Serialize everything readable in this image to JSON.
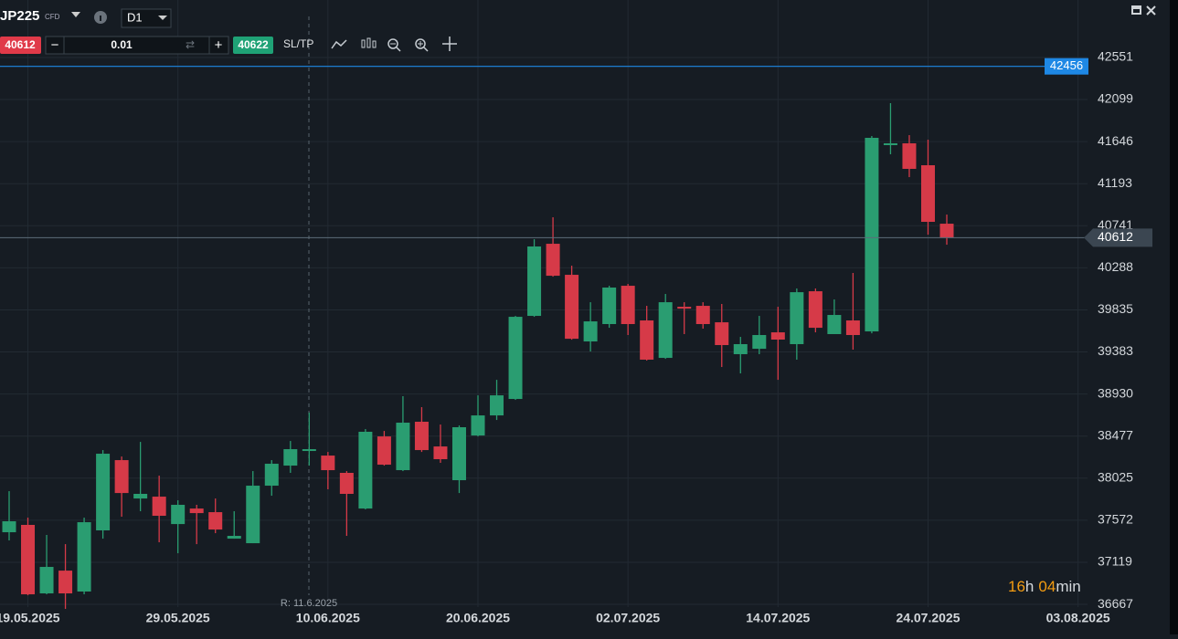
{
  "toolbar": {
    "symbol": "JP225",
    "symbol_type": "CFD",
    "timeframe": "D1",
    "sell_price": 40612,
    "volume": 0.01,
    "buy_price": 40622,
    "sltp": "SL/TP"
  },
  "chart_data": {
    "type": "candlestick",
    "categories": [
      null,
      "19.05.2025",
      null,
      null,
      null,
      null,
      null,
      null,
      null,
      "29.05.2025",
      null,
      null,
      null,
      null,
      null,
      null,
      null,
      "10.06.2025",
      null,
      null,
      null,
      null,
      null,
      null,
      null,
      "20.06.2025",
      null,
      null,
      null,
      null,
      null,
      null,
      null,
      "02.07.2025",
      null,
      null,
      null,
      null,
      null,
      null,
      null,
      "14.07.2025",
      null,
      null,
      null,
      null,
      null,
      null,
      null,
      "24.07.2025",
      null,
      null,
      null,
      null,
      null,
      null,
      null,
      "03.08.2025"
    ],
    "open": [
      37443,
      37522,
      36785,
      37030,
      36805,
      37463,
      38219,
      37806,
      37826,
      37531,
      37698,
      37659,
      37374,
      37325,
      37944,
      38160,
      38327,
      38268,
      38082,
      37698,
      38474,
      38111,
      38632,
      38366,
      38003,
      38484,
      38700,
      38877,
      39771,
      40547,
      40213,
      39496,
      39683,
      40095,
      39722,
      39319,
      39869,
      39879,
      39702,
      39359,
      39417,
      39594,
      39467,
      40036,
      39575,
      39722,
      39604,
      41618,
      41628,
      41392,
      40763,
      null,
      null,
      null,
      null,
      null,
      null,
      null
    ],
    "high": [
      37885,
      37600,
      37414,
      37315,
      37600,
      38327,
      38258,
      38415,
      38052,
      37787,
      37738,
      37806,
      37669,
      38101,
      38219,
      38425,
      38730,
      38307,
      38101,
      38553,
      38533,
      38907,
      38789,
      38602,
      38592,
      38916,
      39083,
      39771,
      40596,
      40832,
      40311,
      39918,
      40095,
      40115,
      39879,
      40007,
      39918,
      39918,
      39899,
      39545,
      39771,
      39869,
      40066,
      40066,
      39948,
      40233,
      41706,
      42060,
      41716,
      41667,
      40861,
      null,
      null,
      null,
      null,
      null,
      null,
      null
    ],
    "low": [
      37355,
      36765,
      36775,
      36618,
      36775,
      37374,
      37610,
      37669,
      37335,
      37217,
      37315,
      37433,
      37374,
      37325,
      37836,
      38082,
      38160,
      37905,
      37404,
      37689,
      38160,
      38101,
      38307,
      38190,
      37865,
      38474,
      38651,
      38867,
      39761,
      40193,
      39515,
      39388,
      39643,
      39565,
      39290,
      39309,
      39575,
      39634,
      39221,
      39152,
      39359,
      39083,
      39300,
      39594,
      39575,
      39408,
      39584,
      41510,
      41264,
      40645,
      40537,
      null,
      null,
      null,
      null,
      null,
      null,
      null
    ],
    "close": [
      37561,
      36775,
      37070,
      36785,
      37551,
      38288,
      37865,
      37856,
      37620,
      37738,
      37649,
      37472,
      37404,
      37944,
      38180,
      38337,
      38337,
      38111,
      37856,
      38524,
      38170,
      38622,
      38327,
      38229,
      38573,
      38700,
      38916,
      39761,
      40518,
      40203,
      39525,
      39712,
      40076,
      39683,
      39300,
      39918,
      39859,
      39683,
      39457,
      39467,
      39565,
      39516,
      40026,
      39643,
      39781,
      39565,
      41687,
      41628,
      41353,
      40783,
      40612,
      null,
      null,
      null,
      null,
      null,
      null,
      null
    ],
    "up_color": "#2a9d71",
    "down_color": "#d63a48",
    "ylim": [
      36638,
      43170
    ],
    "yticks": [
      36667,
      37119,
      37572,
      38025,
      38477,
      38930,
      39383,
      39835,
      40288,
      40741,
      41193,
      41646,
      42099,
      42551
    ],
    "grid": true,
    "lines": [
      {
        "value": 42456,
        "color": "#1e88e5"
      }
    ],
    "current_price": 40612,
    "crosshair_label": "R: 11.6.2025",
    "countdown": {
      "hours": 16,
      "hours_unit": "h",
      "minutes": "04",
      "minutes_unit": "min"
    }
  }
}
